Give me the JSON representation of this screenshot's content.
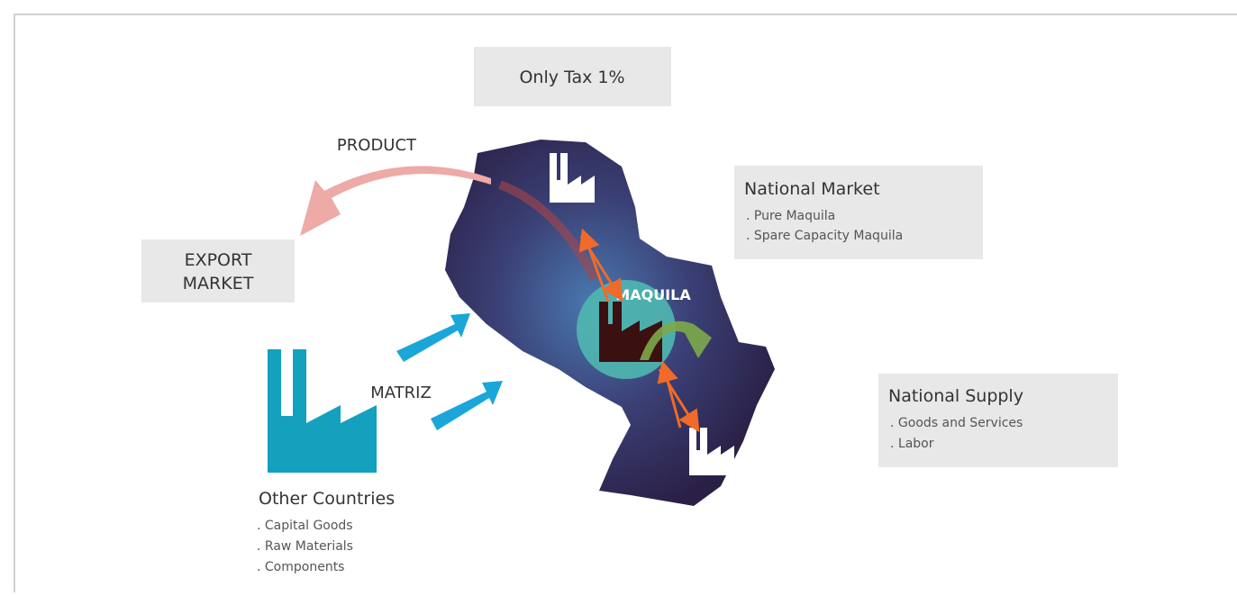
{
  "tax_box": {
    "label": "Only Tax 1%"
  },
  "product": {
    "label": "PRODUCT"
  },
  "export_market": {
    "lines": [
      "EXPORT",
      "MARKET"
    ]
  },
  "national_market": {
    "title": "National Market",
    "items": [
      ". Pure Maquila",
      ". Spare Capacity Maquila"
    ]
  },
  "maquila": {
    "label": "MAQUILA"
  },
  "national_supply": {
    "title": "National Supply",
    "items": [
      ". Goods and Services",
      ". Labor"
    ]
  },
  "matriz": {
    "label": "MATRIZ"
  },
  "other_countries": {
    "title": "Other Countries",
    "items": [
      ". Capital Goods",
      ". Raw Materials",
      ". Components"
    ]
  }
}
